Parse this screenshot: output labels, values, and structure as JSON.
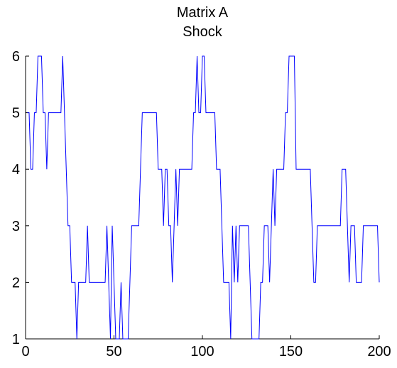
{
  "chart_data": {
    "type": "line",
    "title": "Matrix A",
    "subtitle": "Shock",
    "x": [
      1,
      2,
      3,
      4,
      5,
      6,
      7,
      8,
      9,
      10,
      11,
      12,
      13,
      14,
      15,
      16,
      17,
      18,
      19,
      20,
      21,
      22,
      23,
      24,
      25,
      26,
      27,
      28,
      29,
      30,
      31,
      32,
      33,
      34,
      35,
      36,
      37,
      38,
      39,
      40,
      41,
      42,
      43,
      44,
      45,
      46,
      47,
      48,
      49,
      50,
      51,
      52,
      53,
      54,
      55,
      56,
      57,
      58,
      59,
      60,
      61,
      62,
      63,
      64,
      65,
      66,
      67,
      68,
      69,
      70,
      71,
      72,
      73,
      74,
      75,
      76,
      77,
      78,
      79,
      80,
      81,
      82,
      83,
      84,
      85,
      86,
      87,
      88,
      89,
      90,
      91,
      92,
      93,
      94,
      95,
      96,
      97,
      98,
      99,
      100,
      101,
      102,
      103,
      104,
      105,
      106,
      107,
      108,
      109,
      110,
      111,
      112,
      113,
      114,
      115,
      116,
      117,
      118,
      119,
      120,
      121,
      122,
      123,
      124,
      125,
      126,
      127,
      128,
      129,
      130,
      131,
      132,
      133,
      134,
      135,
      136,
      137,
      138,
      139,
      140,
      141,
      142,
      143,
      144,
      145,
      146,
      147,
      148,
      149,
      150,
      151,
      152,
      153,
      154,
      155,
      156,
      157,
      158,
      159,
      160,
      161,
      162,
      163,
      164,
      165,
      166,
      167,
      168,
      169,
      170,
      171,
      172,
      173,
      174,
      175,
      176,
      177,
      178,
      179,
      180,
      181,
      182,
      183,
      184,
      185,
      186,
      187,
      188,
      189,
      190,
      191,
      192,
      193,
      194,
      195,
      196,
      197,
      198,
      199,
      200
    ],
    "series": [
      {
        "color": "#0000ff",
        "values": [
          5,
          5,
          4,
          4,
          5,
          5,
          6,
          6,
          6,
          5,
          5,
          4,
          5,
          5,
          5,
          5,
          5,
          5,
          5,
          5,
          6,
          5,
          4,
          3,
          3,
          2,
          2,
          2,
          1,
          2,
          2,
          2,
          2,
          2,
          3,
          2,
          2,
          2,
          2,
          2,
          2,
          2,
          2,
          2,
          2,
          3,
          2,
          1,
          3,
          2,
          1,
          1,
          1,
          2,
          1,
          1,
          1,
          1,
          2,
          3,
          3,
          3,
          3,
          3,
          4,
          5,
          5,
          5,
          5,
          5,
          5,
          5,
          5,
          5,
          4,
          4,
          4,
          3,
          4,
          4,
          3,
          3,
          2,
          3,
          4,
          3,
          4,
          4,
          4,
          4,
          4,
          4,
          4,
          4,
          5,
          5,
          6,
          5,
          5,
          6,
          6,
          5,
          5,
          5,
          5,
          5,
          5,
          4,
          4,
          4,
          3,
          2,
          2,
          2,
          2,
          1,
          3,
          2,
          3,
          2,
          3,
          3,
          3,
          3,
          3,
          3,
          2,
          1,
          1,
          1,
          1,
          1,
          2,
          2,
          3,
          3,
          3,
          2,
          3,
          4,
          3,
          4,
          4,
          4,
          4,
          4,
          5,
          5,
          6,
          6,
          6,
          6,
          4,
          4,
          4,
          4,
          4,
          4,
          4,
          4,
          4,
          3,
          2,
          2,
          3,
          3,
          3,
          3,
          3,
          3,
          3,
          3,
          3,
          3,
          3,
          3,
          3,
          3,
          4,
          4,
          4,
          3,
          2,
          3,
          3,
          3,
          2,
          2,
          2,
          2,
          3,
          3,
          3,
          3,
          3,
          3,
          3,
          3,
          3,
          2
        ]
      }
    ],
    "xlim": [
      0,
      200
    ],
    "xticks": [
      0,
      50,
      100,
      150,
      200
    ],
    "ylim": [
      1,
      6
    ],
    "yticks": [
      1,
      2,
      3,
      4,
      5,
      6
    ]
  }
}
